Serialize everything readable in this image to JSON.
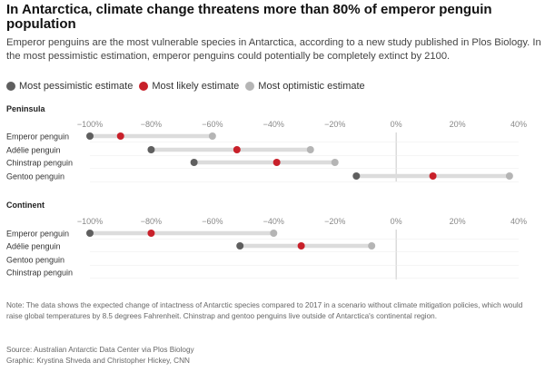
{
  "title": "In Antarctica, climate change threatens more than 80% of emperor penguin population",
  "subtitle": "Emperor penguins are the most vulnerable species in Antarctica, according to a new study published in Plos Biology. In the most pessimistic estimation, emperor penguins could potentially be completely extinct by 2100.",
  "legend": [
    {
      "label": "Most pessimistic estimate",
      "color": "#5f5f5f"
    },
    {
      "label": "Most likely estimate",
      "color": "#c8202a"
    },
    {
      "label": "Most optimistic estimate",
      "color": "#b5b5b5"
    }
  ],
  "note": "Note: The data shows the expected change of intactness of Antarctic species compared to 2017 in a scenario without climate mitigation policies, which would raise global temperatures by 8.5 degrees Fahrenheit. Chinstrap and gentoo penguins live outside of Antarctica's continental region.",
  "source": "Source: Australian Antarctic Data Center via Plos Biology",
  "credit": "Graphic: Krystina Shveda and Christopher Hickey, CNN",
  "chart_data": [
    {
      "type": "dumbbell",
      "title": "Peninsula",
      "xlim": [
        -100,
        40
      ],
      "ticks": [
        "−100%",
        "−80%",
        "−60%",
        "−40%",
        "−20%",
        "0%",
        "20%",
        "40%"
      ],
      "tick_values": [
        -100,
        -80,
        -60,
        -40,
        -20,
        0,
        20,
        40
      ],
      "rows": [
        {
          "label": "Emperor penguin",
          "pessimistic": -100,
          "likely": -90,
          "optimistic": -60
        },
        {
          "label": "Adélie penguin",
          "pessimistic": -80,
          "likely": -52,
          "optimistic": -28
        },
        {
          "label": "Chinstrap penguin",
          "pessimistic": -66,
          "likely": -39,
          "optimistic": -20
        },
        {
          "label": "Gentoo penguin",
          "pessimistic": -13,
          "likely": 12,
          "optimistic": 37
        }
      ]
    },
    {
      "type": "dumbbell",
      "title": "Continent",
      "xlim": [
        -100,
        40
      ],
      "ticks": [
        "−100%",
        "−80%",
        "−60%",
        "−40%",
        "−20%",
        "0%",
        "20%",
        "40%"
      ],
      "tick_values": [
        -100,
        -80,
        -60,
        -40,
        -20,
        0,
        20,
        40
      ],
      "rows": [
        {
          "label": "Emperor penguin",
          "pessimistic": -100,
          "likely": -80,
          "optimistic": -40
        },
        {
          "label": "Adélie penguin",
          "pessimistic": -51,
          "likely": -31,
          "optimistic": -8
        },
        {
          "label": "Gentoo penguin",
          "pessimistic": null,
          "likely": null,
          "optimistic": null
        },
        {
          "label": "Chinstrap penguin",
          "pessimistic": null,
          "likely": null,
          "optimistic": null
        }
      ]
    }
  ]
}
